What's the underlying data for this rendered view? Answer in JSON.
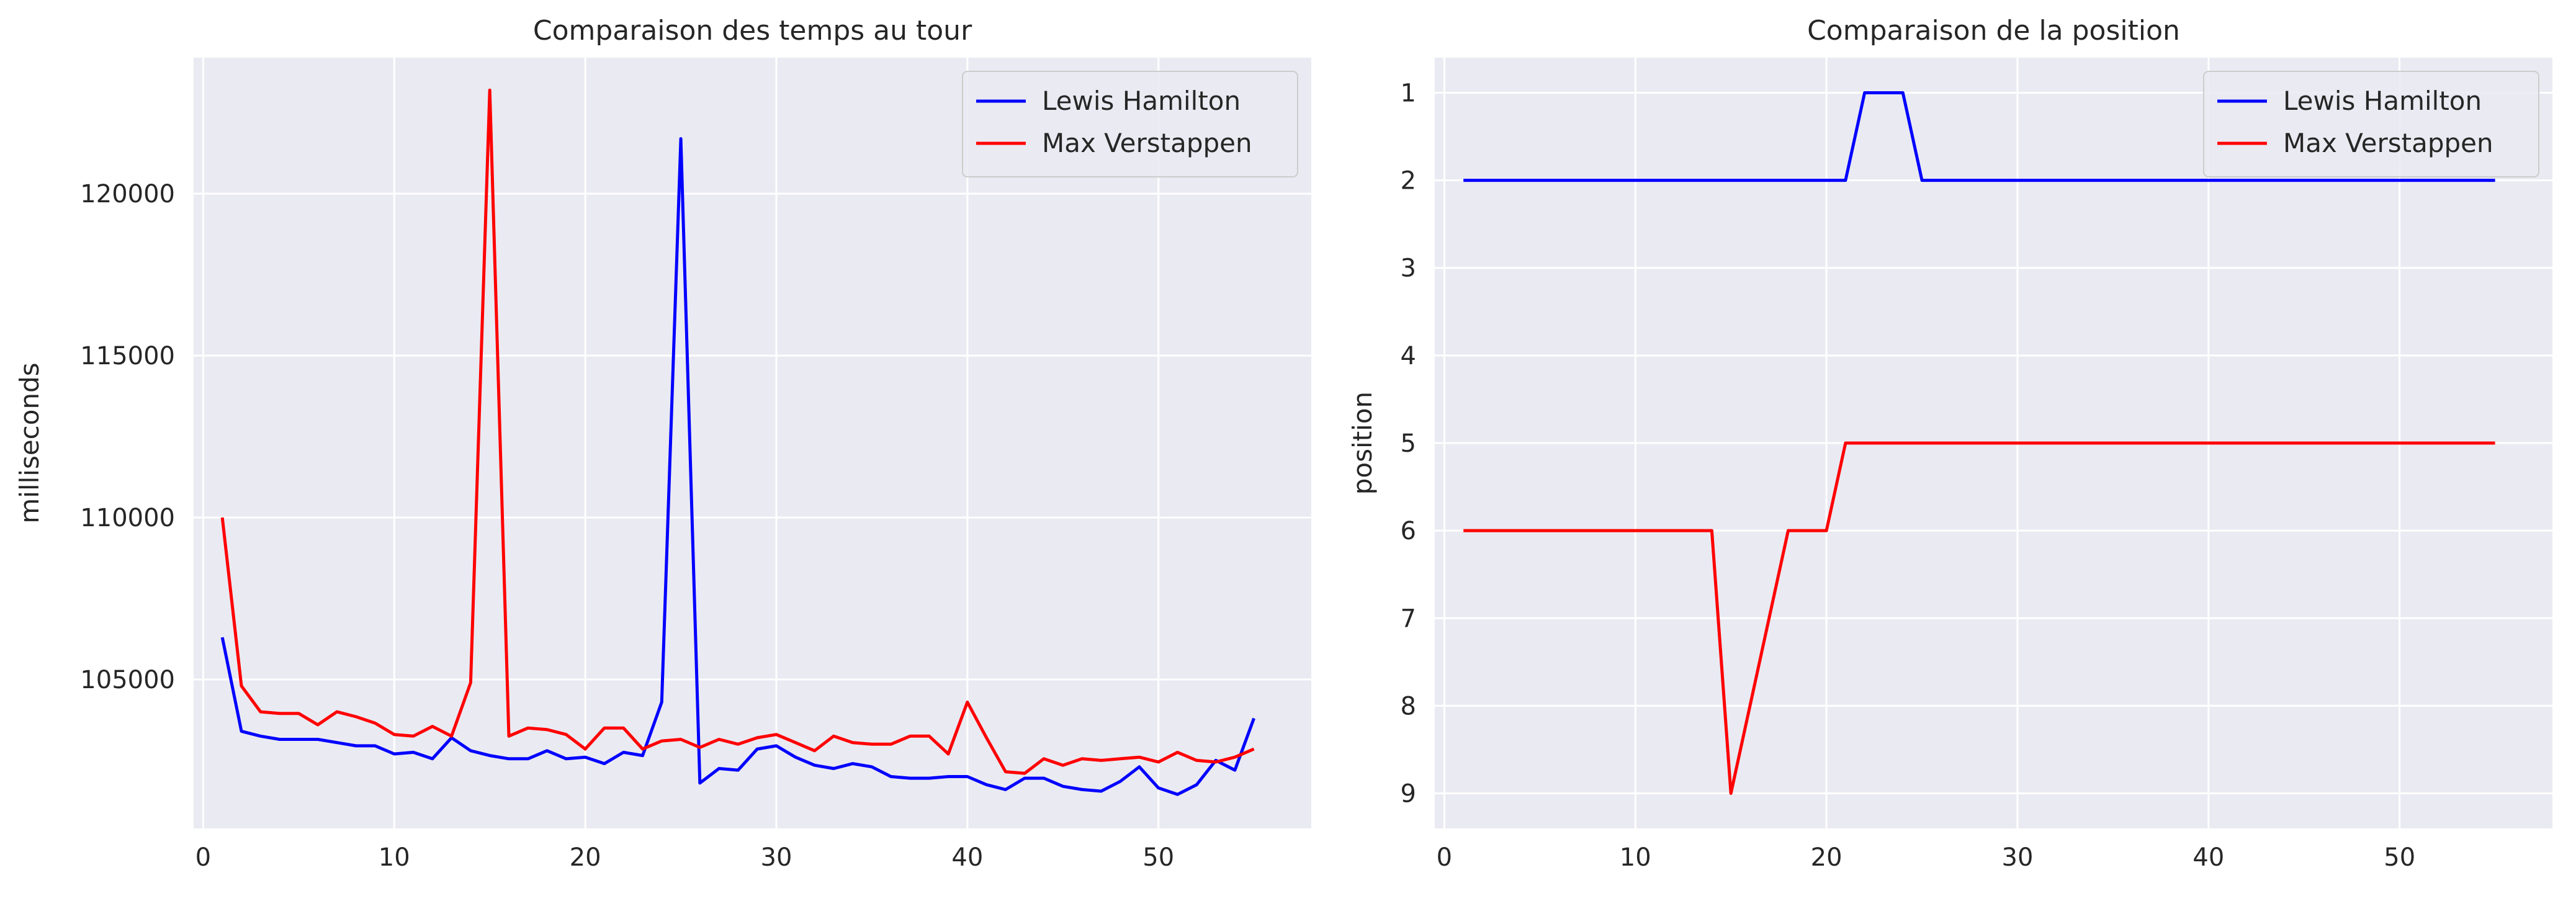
{
  "chart_data": [
    {
      "type": "line",
      "title": "Comparaison des temps au tour",
      "xlabel": "",
      "ylabel": "milliseconds",
      "xlim": [
        -0.5,
        58
      ],
      "ylim": [
        100400,
        124200
      ],
      "xticks": [
        0,
        10,
        20,
        30,
        40,
        50
      ],
      "yticks": [
        105000,
        110000,
        115000,
        120000
      ],
      "grid": true,
      "legend": "top-right",
      "series": [
        {
          "name": "Lewis Hamilton",
          "color": "#0000ff",
          "x": [
            1,
            2,
            3,
            4,
            5,
            6,
            7,
            8,
            9,
            10,
            11,
            12,
            13,
            14,
            15,
            16,
            17,
            18,
            19,
            20,
            21,
            22,
            23,
            24,
            25,
            26,
            27,
            28,
            29,
            30,
            31,
            32,
            33,
            34,
            35,
            36,
            37,
            38,
            39,
            40,
            41,
            42,
            43,
            44,
            45,
            46,
            47,
            48,
            49,
            50,
            51,
            52,
            53,
            54,
            55
          ],
          "values": [
            106300,
            103400,
            103250,
            103150,
            103150,
            103150,
            103050,
            102950,
            102950,
            102700,
            102750,
            102550,
            103200,
            102800,
            102650,
            102550,
            102550,
            102800,
            102550,
            102600,
            102400,
            102750,
            102650,
            104300,
            121700,
            101800,
            102250,
            102200,
            102850,
            102950,
            102600,
            102350,
            102250,
            102400,
            102300,
            102000,
            101950,
            101950,
            102000,
            102000,
            101750,
            101600,
            101950,
            101950,
            101700,
            101600,
            101550,
            101850,
            102300,
            101650,
            101450,
            101750,
            102500,
            102200,
            103800
          ]
        },
        {
          "name": "Max Verstappen",
          "color": "#ff0000",
          "x": [
            1,
            2,
            3,
            4,
            5,
            6,
            7,
            8,
            9,
            10,
            11,
            12,
            13,
            14,
            15,
            16,
            17,
            18,
            19,
            20,
            21,
            22,
            23,
            24,
            25,
            26,
            27,
            28,
            29,
            30,
            31,
            32,
            33,
            34,
            35,
            36,
            37,
            38,
            39,
            40,
            41,
            42,
            43,
            44,
            45,
            46,
            47,
            48,
            49,
            50,
            51,
            52,
            53,
            54,
            55
          ],
          "values": [
            110000,
            104800,
            104000,
            103950,
            103950,
            103600,
            104000,
            103850,
            103650,
            103300,
            103250,
            103550,
            103250,
            104900,
            123200,
            103250,
            103500,
            103450,
            103300,
            102850,
            103500,
            103500,
            102850,
            103100,
            103150,
            102900,
            103150,
            103000,
            103200,
            103300,
            103050,
            102800,
            103250,
            103050,
            103000,
            103000,
            103250,
            103250,
            102700,
            104300,
            103200,
            102150,
            102100,
            102550,
            102350,
            102550,
            102500,
            102550,
            102600,
            102450,
            102750,
            102500,
            102450,
            102600,
            102850
          ]
        }
      ]
    },
    {
      "type": "line",
      "title": "Comparaison de la position",
      "xlabel": "",
      "ylabel": "position",
      "xlim": [
        -0.5,
        58
      ],
      "ylim": [
        9.4,
        0.6
      ],
      "y_inverted": true,
      "xticks": [
        0,
        10,
        20,
        30,
        40,
        50
      ],
      "yticks": [
        1,
        2,
        3,
        4,
        5,
        6,
        7,
        8,
        9
      ],
      "grid": true,
      "legend": "top-right",
      "series": [
        {
          "name": "Lewis Hamilton",
          "color": "#0000ff",
          "x": [
            1,
            21,
            22,
            24,
            25,
            55
          ],
          "values": [
            2,
            2,
            1,
            1,
            2,
            2
          ]
        },
        {
          "name": "Max Verstappen",
          "color": "#ff0000",
          "x": [
            1,
            14,
            15,
            18,
            20,
            21,
            55
          ],
          "values": [
            6,
            6,
            9,
            6,
            6,
            5,
            5
          ]
        }
      ]
    }
  ]
}
